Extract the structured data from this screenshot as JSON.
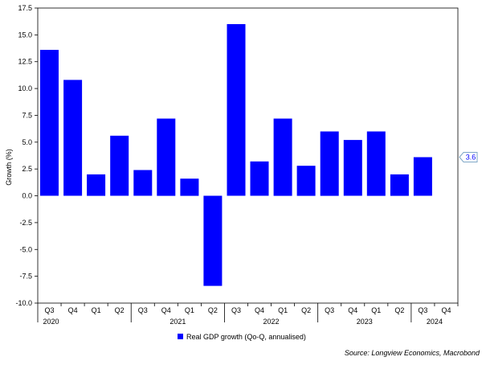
{
  "chart_data": {
    "type": "bar",
    "ylabel": "Growth (%)",
    "ylim": [
      -10.0,
      17.5
    ],
    "yticks": [
      "17.5",
      "15.0",
      "12.5",
      "10.0",
      "7.5",
      "5.0",
      "2.5",
      "0.0",
      "-2.5",
      "-5.0",
      "-7.5",
      "-10.0"
    ],
    "ytick_values": [
      17.5,
      15.0,
      12.5,
      10.0,
      7.5,
      5.0,
      2.5,
      0.0,
      -2.5,
      -5.0,
      -7.5,
      -10.0
    ],
    "quarters": [
      "Q3",
      "Q4",
      "Q1",
      "Q2",
      "Q3",
      "Q4",
      "Q1",
      "Q2",
      "Q3",
      "Q4",
      "Q1",
      "Q2",
      "Q3",
      "Q4",
      "Q1",
      "Q2",
      "Q3",
      "Q4"
    ],
    "years": [
      {
        "label": "2020",
        "quarter_index": 0
      },
      {
        "label": "2021",
        "quarter_index": 4
      },
      {
        "label": "2022",
        "quarter_index": 8
      },
      {
        "label": "2023",
        "quarter_index": 12
      },
      {
        "label": "2024",
        "quarter_index": 16
      }
    ],
    "series": [
      {
        "name": "Real GDP growth (Qo-Q, annualised)",
        "color": "#0000ff",
        "values": [
          13.6,
          10.8,
          2.0,
          5.6,
          2.4,
          7.2,
          1.6,
          -8.4,
          16.0,
          3.2,
          7.2,
          2.8,
          6.0,
          5.2,
          6.0,
          2.0,
          3.6,
          null
        ]
      }
    ],
    "last_value_callout": "3.6",
    "grid": false,
    "legend_position": "bottom"
  },
  "source": "Source: Longview Economics, Macrobond"
}
